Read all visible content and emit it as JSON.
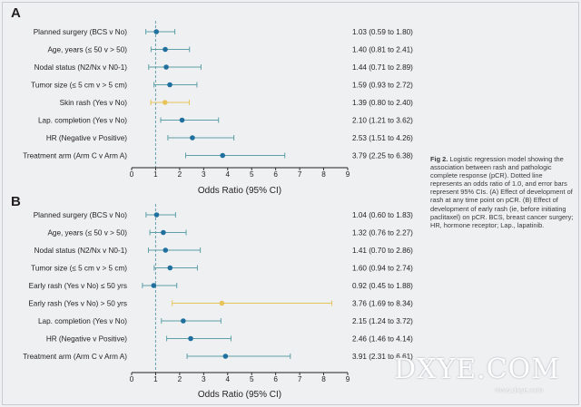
{
  "figure": {
    "caption_label": "Fig 2.",
    "caption_text": "Logistic regression model showing the association between rash and pathologic complete response (pCR). Dotted line represents an odds ratio of 1.0, and error bars represent 95% CIs. (A) Effect of development of rash at any time point on pCR. (B) Effect of development of early rash (ie, before initiating paclitaxel) on pCR. BCS, breast cancer surgery; HR, hormone receptor; Lap., lapatinib.",
    "watermark": "DXYE.COM",
    "watermark_url": "www.dxye.com"
  },
  "colors": {
    "default_point": "#1f6f9f",
    "highlight_point": "#e8c35a",
    "ci_line": "#5fa0a8",
    "axis": "#231f20",
    "reference": "#6a9db0"
  },
  "chart_data": [
    {
      "type": "forest",
      "panel": "A",
      "xlabel": "Odds Ratio (95% CI)",
      "xlim": [
        0,
        9
      ],
      "ticks": [
        0,
        1,
        2,
        3,
        4,
        5,
        6,
        7,
        8,
        9
      ],
      "reference_line": 1,
      "rows": [
        {
          "label": "Planned surgery (BCS v No)",
          "or": 1.03,
          "lo": 0.59,
          "hi": 1.8,
          "text": "1.03 (0.59 to 1.80)",
          "highlight": false
        },
        {
          "label": "Age, years (≤ 50 v > 50)",
          "or": 1.4,
          "lo": 0.81,
          "hi": 2.41,
          "text": "1.40 (0.81 to 2.41)",
          "highlight": false
        },
        {
          "label": "Nodal status (N2/Nx v N0-1)",
          "or": 1.44,
          "lo": 0.71,
          "hi": 2.89,
          "text": "1.44 (0.71 to 2.89)",
          "highlight": false
        },
        {
          "label": "Tumor size (≤ 5 cm v > 5 cm)",
          "or": 1.59,
          "lo": 0.93,
          "hi": 2.72,
          "text": "1.59 (0.93 to 2.72)",
          "highlight": false
        },
        {
          "label": "Skin rash (Yes v No)",
          "or": 1.39,
          "lo": 0.8,
          "hi": 2.4,
          "text": "1.39 (0.80 to 2.40)",
          "highlight": true
        },
        {
          "label": "Lap. completion (Yes v No)",
          "or": 2.1,
          "lo": 1.21,
          "hi": 3.62,
          "text": "2.10 (1.21 to 3.62)",
          "highlight": false
        },
        {
          "label": "HR (Negative v Positive)",
          "or": 2.53,
          "lo": 1.51,
          "hi": 4.26,
          "text": "2.53 (1.51 to 4.26)",
          "highlight": false
        },
        {
          "label": "Treatment arm (Arm C v Arm A)",
          "or": 3.79,
          "lo": 2.25,
          "hi": 6.38,
          "text": "3.79 (2.25 to 6.38)",
          "highlight": false
        }
      ]
    },
    {
      "type": "forest",
      "panel": "B",
      "xlabel": "Odds Ratio (95% CI)",
      "xlim": [
        0,
        9
      ],
      "ticks": [
        0,
        1,
        2,
        3,
        4,
        5,
        6,
        7,
        8,
        9
      ],
      "reference_line": 1,
      "rows": [
        {
          "label": "Planned surgery (BCS v No)",
          "or": 1.04,
          "lo": 0.6,
          "hi": 1.83,
          "text": "1.04 (0.60 to 1.83)",
          "highlight": false
        },
        {
          "label": "Age, years (≤ 50 v > 50)",
          "or": 1.32,
          "lo": 0.76,
          "hi": 2.27,
          "text": "1.32 (0.76 to 2.27)",
          "highlight": false
        },
        {
          "label": "Nodal status (N2/Nx v N0-1)",
          "or": 1.41,
          "lo": 0.7,
          "hi": 2.86,
          "text": "1.41 (0.70 to 2.86)",
          "highlight": false
        },
        {
          "label": "Tumor size (≤ 5 cm v > 5 cm)",
          "or": 1.6,
          "lo": 0.94,
          "hi": 2.74,
          "text": "1.60 (0.94 to 2.74)",
          "highlight": false
        },
        {
          "label": "Early rash (Yes v No) ≤ 50 yrs",
          "or": 0.92,
          "lo": 0.45,
          "hi": 1.88,
          "text": "0.92 (0.45 to 1.88)",
          "highlight": false
        },
        {
          "label": "Early rash (Yes v No) > 50 yrs",
          "or": 3.76,
          "lo": 1.69,
          "hi": 8.34,
          "text": "3.76 (1.69 to 8.34)",
          "highlight": true
        },
        {
          "label": "Lap. completion (Yes v No)",
          "or": 2.15,
          "lo": 1.24,
          "hi": 3.72,
          "text": "2.15 (1.24 to 3.72)",
          "highlight": false
        },
        {
          "label": "HR (Negative v Positive)",
          "or": 2.46,
          "lo": 1.46,
          "hi": 4.14,
          "text": "2.46 (1.46 to 4.14)",
          "highlight": false
        },
        {
          "label": "Treatment arm (Arm C v Arm A)",
          "or": 3.91,
          "lo": 2.31,
          "hi": 6.61,
          "text": "3.91 (2.31 to 6.61)",
          "highlight": false
        }
      ]
    }
  ]
}
